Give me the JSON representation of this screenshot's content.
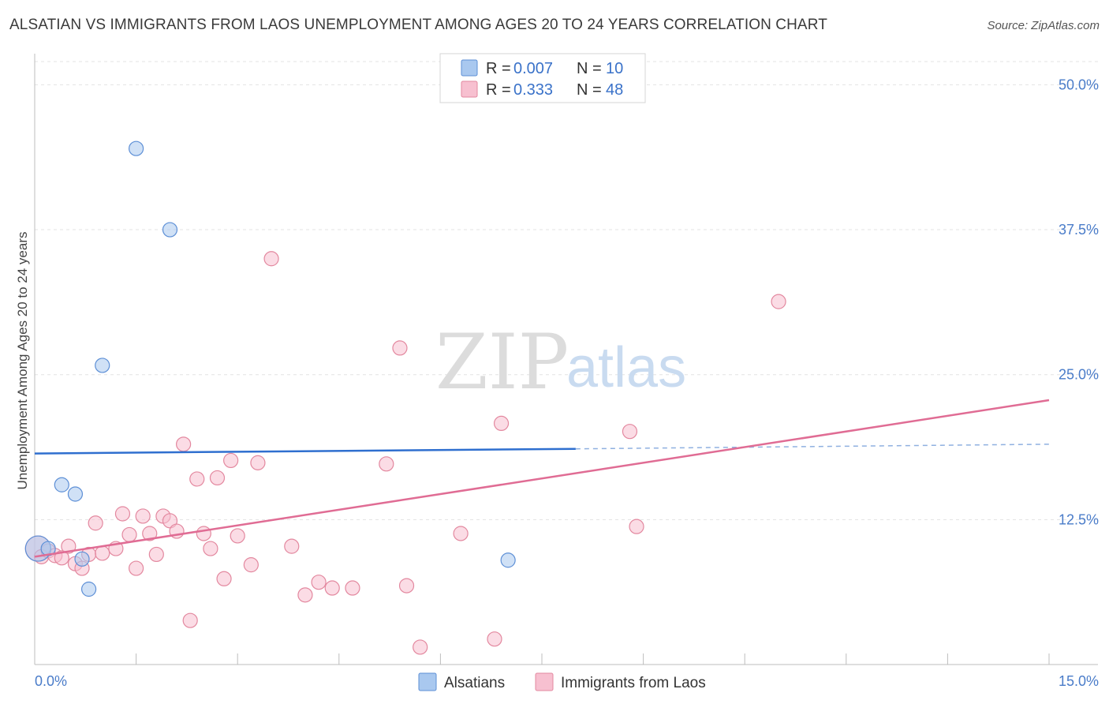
{
  "header": {
    "title": "ALSATIAN VS IMMIGRANTS FROM LAOS UNEMPLOYMENT AMONG AGES 20 TO 24 YEARS CORRELATION CHART",
    "source": "Source: ZipAtlas.com"
  },
  "watermark": {
    "zip": "ZIP",
    "atlas": "atlas"
  },
  "legend": {
    "r_label": "R =",
    "n_label": "N =",
    "series": [
      {
        "name": "Alsatians",
        "r": "0.007",
        "n": "10",
        "color": "#a9c8ef",
        "stroke": "#5d8fd6"
      },
      {
        "name": "Immigrants from Laos",
        "r": "0.333",
        "n": "48",
        "color": "#f7c0d0",
        "stroke": "#e3889f"
      }
    ]
  },
  "chart_data": {
    "type": "scatter",
    "title": "ALSATIAN VS IMMIGRANTS FROM LAOS UNEMPLOYMENT AMONG AGES 20 TO 24 YEARS CORRELATION CHART",
    "xlabel": "",
    "ylabel": "Unemployment Among Ages 20 to 24 years",
    "xlim": [
      0,
      15
    ],
    "ylim": [
      0,
      52
    ],
    "x_tick_labels": [
      "0.0%",
      "15.0%"
    ],
    "y_ticks": [
      12.5,
      25.0,
      37.5,
      50.0
    ],
    "y_tick_labels": [
      "12.5%",
      "25.0%",
      "37.5%",
      "50.0%"
    ],
    "series": [
      {
        "name": "Alsatians",
        "color": "#a9c8ef",
        "points": [
          [
            0.05,
            10.0
          ],
          [
            0.2,
            10.0
          ],
          [
            0.4,
            15.5
          ],
          [
            0.6,
            14.7
          ],
          [
            0.7,
            9.1
          ],
          [
            0.8,
            6.5
          ],
          [
            1.0,
            25.8
          ],
          [
            1.5,
            44.5
          ],
          [
            2.0,
            37.5
          ],
          [
            7.0,
            9.0
          ]
        ],
        "trend": {
          "x": [
            0.0,
            8.0
          ],
          "y": [
            18.2,
            18.6
          ],
          "dashed_to": [
            15.0,
            19.0
          ]
        }
      },
      {
        "name": "Immigrants from Laos",
        "color": "#f7c0d0",
        "points": [
          [
            0.05,
            10.0
          ],
          [
            0.1,
            9.3
          ],
          [
            0.2,
            9.8
          ],
          [
            0.3,
            9.4
          ],
          [
            0.4,
            9.2
          ],
          [
            0.5,
            10.2
          ],
          [
            0.6,
            8.7
          ],
          [
            0.7,
            8.3
          ],
          [
            0.8,
            9.5
          ],
          [
            0.9,
            12.2
          ],
          [
            1.0,
            9.6
          ],
          [
            1.2,
            10.0
          ],
          [
            1.3,
            13.0
          ],
          [
            1.4,
            11.2
          ],
          [
            1.5,
            8.3
          ],
          [
            1.6,
            12.8
          ],
          [
            1.7,
            11.3
          ],
          [
            1.8,
            9.5
          ],
          [
            1.9,
            12.8
          ],
          [
            2.0,
            12.4
          ],
          [
            2.1,
            11.5
          ],
          [
            2.2,
            19.0
          ],
          [
            2.3,
            3.8
          ],
          [
            2.4,
            16.0
          ],
          [
            2.5,
            11.3
          ],
          [
            2.6,
            10.0
          ],
          [
            2.7,
            16.1
          ],
          [
            2.8,
            7.4
          ],
          [
            2.9,
            17.6
          ],
          [
            3.0,
            11.1
          ],
          [
            3.2,
            8.6
          ],
          [
            3.3,
            17.4
          ],
          [
            3.5,
            35.0
          ],
          [
            3.8,
            10.2
          ],
          [
            4.0,
            6.0
          ],
          [
            4.2,
            7.1
          ],
          [
            4.4,
            6.6
          ],
          [
            4.7,
            6.6
          ],
          [
            5.2,
            17.3
          ],
          [
            5.4,
            27.3
          ],
          [
            5.5,
            6.8
          ],
          [
            5.7,
            1.5
          ],
          [
            6.3,
            11.3
          ],
          [
            6.8,
            2.2
          ],
          [
            6.9,
            20.8
          ],
          [
            8.8,
            20.1
          ],
          [
            8.9,
            11.9
          ],
          [
            11.0,
            31.3
          ]
        ],
        "trend": {
          "x": [
            0.0,
            15.0
          ],
          "y": [
            9.3,
            22.8
          ]
        }
      }
    ],
    "grid": true,
    "legend_position": "top-center"
  }
}
